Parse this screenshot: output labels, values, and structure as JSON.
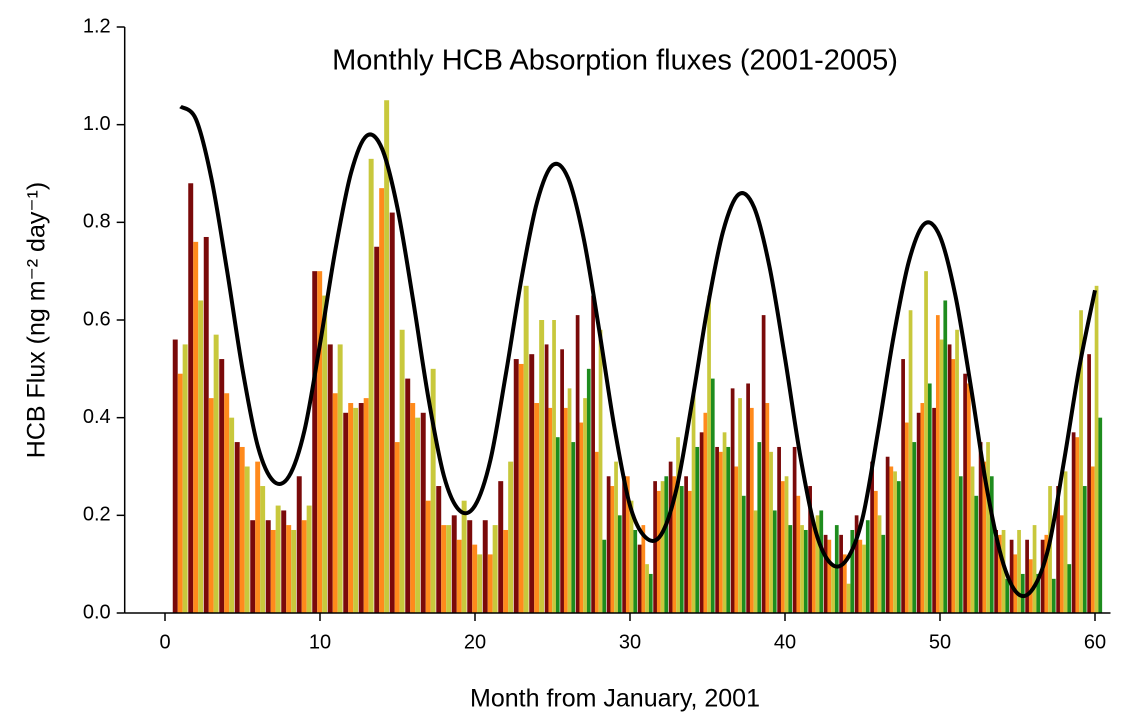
{
  "chart_data": {
    "type": "bar",
    "title": "Monthly HCB Absorption fluxes (2001-2005)",
    "xlabel": "Month from January, 2001",
    "ylabel": "HCB Flux (ng m⁻² day⁻¹)",
    "xlim": [
      -2.6,
      61
    ],
    "ylim": [
      0,
      1.2
    ],
    "xticks": [
      0,
      10,
      20,
      30,
      40,
      50,
      60
    ],
    "yticks": [
      {
        "value": 0,
        "label": "0.0"
      },
      0.2,
      0.4,
      0.6,
      0.8,
      {
        "value": 1,
        "label": "1.0"
      },
      1.2
    ],
    "grid": false,
    "x": [
      1,
      2,
      3,
      4,
      5,
      6,
      7,
      8,
      9,
      10,
      11,
      12,
      13,
      14,
      15,
      16,
      17,
      18,
      19,
      20,
      21,
      22,
      23,
      24,
      25,
      26,
      27,
      28,
      29,
      30,
      31,
      32,
      33,
      34,
      35,
      36,
      37,
      38,
      39,
      40,
      41,
      42,
      43,
      44,
      45,
      46,
      47,
      48,
      49,
      50,
      51,
      52,
      53,
      54,
      55,
      56,
      57,
      58,
      59,
      60
    ],
    "series": [
      {
        "color": "#7a0a0a",
        "values": [
          0.56,
          0.88,
          0.77,
          0.52,
          0.35,
          0.19,
          0.19,
          0.21,
          0.28,
          0.7,
          0.55,
          0.41,
          0.43,
          0.75,
          0.82,
          0.48,
          0.41,
          0.26,
          0.2,
          0.19,
          0.19,
          0.27,
          0.52,
          0.53,
          0.55,
          0.54,
          0.61,
          0.65,
          0.28,
          0.28,
          0.14,
          0.27,
          0.31,
          0.28,
          0.37,
          0.34,
          0.46,
          0.47,
          0.61,
          0.34,
          0.34,
          0.26,
          0.16,
          0.16,
          0.2,
          0.31,
          0.32,
          0.52,
          0.41,
          0.42,
          0.55,
          0.49,
          0.35,
          0.17,
          0.15,
          0.15,
          0.15,
          0.26,
          0.37,
          0.53
        ]
      },
      {
        "color": "#ff8a1c",
        "values": [
          0.49,
          0.76,
          0.44,
          0.45,
          0.34,
          0.31,
          0.17,
          0.18,
          0.19,
          0.7,
          0.45,
          0.43,
          0.44,
          0.87,
          0.35,
          0.43,
          0.23,
          0.18,
          0.15,
          0.14,
          0.12,
          0.17,
          0.51,
          0.43,
          0.42,
          0.42,
          0.39,
          0.33,
          0.26,
          0.28,
          0.18,
          0.25,
          0.28,
          0.25,
          0.41,
          0.33,
          0.3,
          0.42,
          0.43,
          0.27,
          0.24,
          0.18,
          0.15,
          0.12,
          0.15,
          0.25,
          0.3,
          0.39,
          0.43,
          0.61,
          0.52,
          0.47,
          0.31,
          0.16,
          0.12,
          0.11,
          0.16,
          0.2,
          0.36,
          0.3
        ]
      },
      {
        "color": "#c8c83c",
        "values": [
          0.55,
          0.64,
          0.57,
          0.4,
          0.3,
          0.26,
          0.22,
          0.17,
          0.22,
          0.65,
          0.55,
          0.42,
          0.93,
          1.05,
          0.58,
          0.4,
          0.5,
          0.18,
          0.23,
          0.12,
          0.18,
          0.31,
          0.67,
          0.6,
          0.6,
          0.46,
          0.44,
          0.58,
          0.31,
          0.23,
          0.1,
          0.27,
          0.36,
          0.45,
          0.65,
          0.37,
          0.44,
          0.21,
          0.33,
          0.28,
          0.18,
          0.2,
          0.1,
          0.06,
          0.14,
          0.2,
          0.29,
          0.62,
          0.7,
          0.56,
          0.58,
          0.3,
          0.35,
          0.17,
          0.17,
          0.18,
          0.26,
          0.29,
          0.62,
          0.67
        ]
      },
      {
        "color": "#1e8c1e",
        "values": [
          null,
          null,
          null,
          null,
          null,
          null,
          null,
          null,
          null,
          null,
          null,
          null,
          null,
          null,
          null,
          null,
          null,
          null,
          null,
          null,
          null,
          null,
          null,
          null,
          0.36,
          0.35,
          0.5,
          0.15,
          0.2,
          0.17,
          0.08,
          0.28,
          0.26,
          0.34,
          0.48,
          0.34,
          0.24,
          0.35,
          0.21,
          0.18,
          0.17,
          0.21,
          0.18,
          0.17,
          0.19,
          0.16,
          0.27,
          0.35,
          0.47,
          0.64,
          0.28,
          0.24,
          0.28,
          0.07,
          0.08,
          0.08,
          0.07,
          0.1,
          0.26,
          0.4
        ]
      },
      {
        "type": "line",
        "color": "#000000",
        "values": [
          1.037,
          1.011,
          0.889,
          0.702,
          0.499,
          0.34,
          0.27,
          0.28,
          0.374,
          0.551,
          0.745,
          0.901,
          0.977,
          0.951,
          0.829,
          0.642,
          0.439,
          0.28,
          0.21,
          0.22,
          0.314,
          0.491,
          0.685,
          0.841,
          0.917,
          0.891,
          0.769,
          0.582,
          0.379,
          0.22,
          0.155,
          0.16,
          0.254,
          0.431,
          0.625,
          0.781,
          0.857,
          0.831,
          0.709,
          0.522,
          0.319,
          0.165,
          0.1,
          0.11,
          0.194,
          0.371,
          0.565,
          0.721,
          0.797,
          0.771,
          0.649,
          0.462,
          0.259,
          0.11,
          0.04,
          0.05,
          0.134,
          0.311,
          0.505,
          0.661
        ]
      }
    ]
  }
}
